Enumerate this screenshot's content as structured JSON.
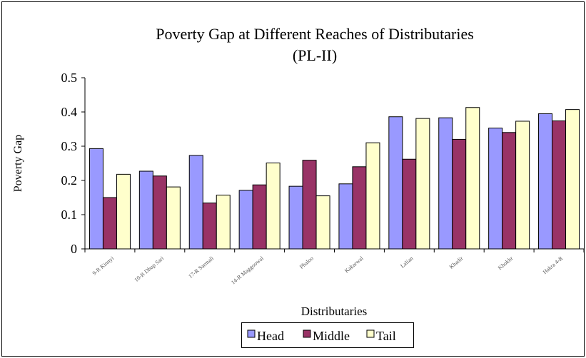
{
  "chart_data": {
    "type": "bar",
    "title": "Poverty Gap at Different Reaches of Distributaries",
    "subtitle": "(PL-II)",
    "xlabel": "Distributaries",
    "ylabel": "Poverty Gap",
    "ylim": [
      0,
      0.5
    ],
    "yticks": [
      "0",
      "0.1",
      "0.2",
      "0.3",
      "0.4",
      "0.5"
    ],
    "ytick_values": [
      0,
      0.1,
      0.2,
      0.3,
      0.4,
      0.5
    ],
    "grid": false,
    "legend_position": "bottom",
    "categories": [
      "9-R Kinnyi",
      "10-R Dhup Sari",
      "17-R Sarmali",
      "14-R Maggoowal",
      "Phaloo",
      "Kakarwal",
      "Lalian",
      "Khadir",
      "Khokhr",
      "Hakra 4-R"
    ],
    "series": [
      {
        "name": "Head",
        "color": "#9999ff",
        "values": [
          0.293,
          0.227,
          0.273,
          0.171,
          0.183,
          0.19,
          0.386,
          0.383,
          0.353,
          0.395
        ]
      },
      {
        "name": "Middle",
        "color": "#993366",
        "values": [
          0.15,
          0.213,
          0.134,
          0.187,
          0.259,
          0.24,
          0.262,
          0.32,
          0.34,
          0.374
        ]
      },
      {
        "name": "Tail",
        "color": "#ffffcc",
        "values": [
          0.218,
          0.181,
          0.157,
          0.251,
          0.155,
          0.31,
          0.381,
          0.413,
          0.373,
          0.407
        ]
      }
    ]
  }
}
